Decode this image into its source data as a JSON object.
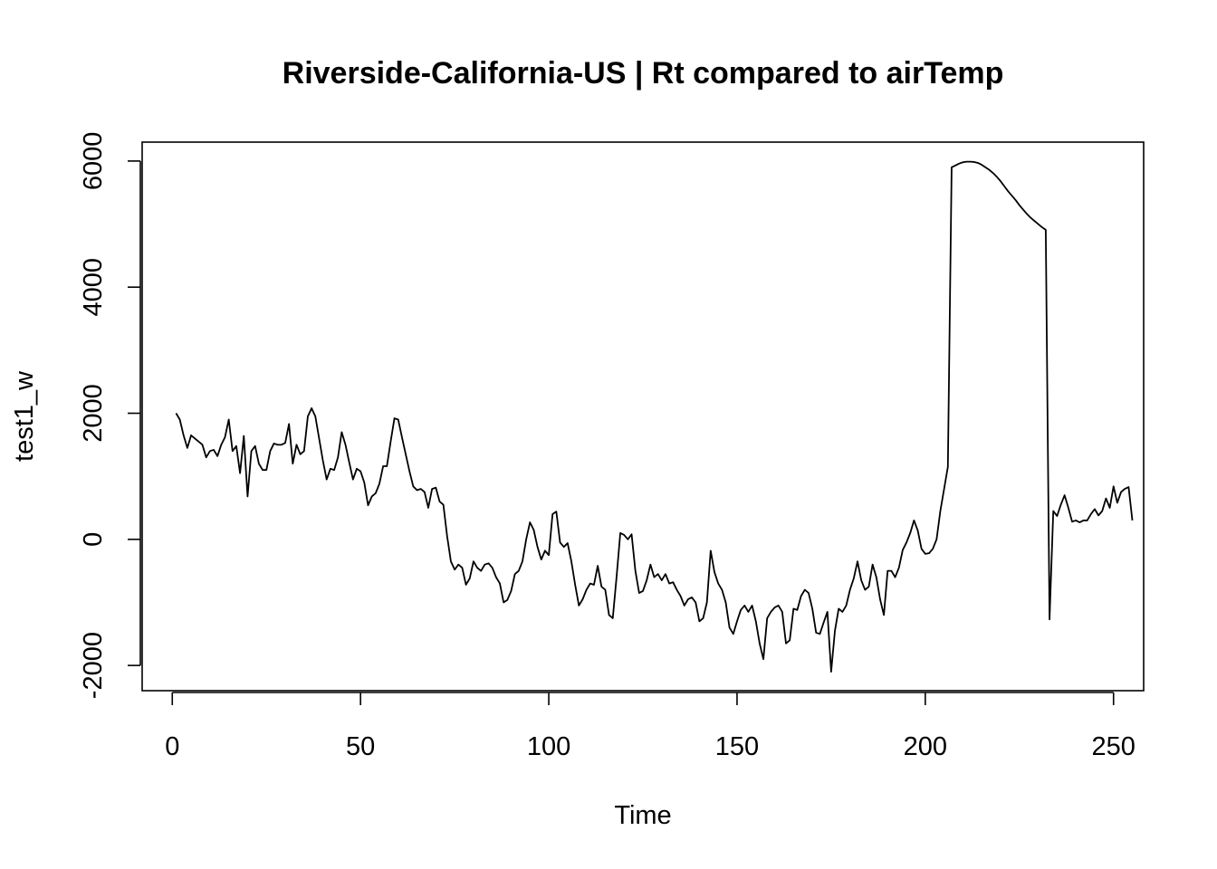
{
  "chart_data": {
    "type": "line",
    "title": "Riverside-California-US | Rt compared to airTemp",
    "xlabel": "Time",
    "ylabel": "test1_w",
    "xlim": [
      -8,
      258
    ],
    "ylim": [
      -2400,
      6300
    ],
    "x_ticks": [
      0,
      50,
      100,
      150,
      200,
      250
    ],
    "y_ticks": [
      -2000,
      0,
      2000,
      4000,
      6000
    ],
    "grid": false,
    "legend": "none",
    "color": "#000000",
    "series": [
      {
        "x_start": 1,
        "x_step": 1,
        "values": [
          2000,
          1900,
          1650,
          1450,
          1650,
          1600,
          1550,
          1500,
          1300,
          1400,
          1420,
          1320,
          1500,
          1620,
          1900,
          1400,
          1480,
          1050,
          1640,
          680,
          1400,
          1480,
          1200,
          1100,
          1100,
          1400,
          1520,
          1500,
          1500,
          1530,
          1830,
          1200,
          1500,
          1350,
          1400,
          1950,
          2080,
          1950,
          1600,
          1250,
          950,
          1120,
          1100,
          1300,
          1700,
          1500,
          1220,
          950,
          1120,
          1080,
          900,
          540,
          680,
          730,
          880,
          1160,
          1160,
          1550,
          1920,
          1900,
          1620,
          1350,
          1080,
          840,
          780,
          800,
          750,
          500,
          800,
          820,
          600,
          550,
          50,
          -350,
          -480,
          -400,
          -450,
          -720,
          -620,
          -350,
          -450,
          -500,
          -400,
          -380,
          -450,
          -600,
          -700,
          -1000,
          -960,
          -820,
          -550,
          -500,
          -350,
          0,
          270,
          150,
          -120,
          -320,
          -180,
          -250,
          400,
          440,
          -50,
          -120,
          -60,
          -350,
          -720,
          -1050,
          -950,
          -800,
          -700,
          -720,
          -420,
          -750,
          -800,
          -1200,
          -1250,
          -600,
          100,
          70,
          0,
          80,
          -500,
          -850,
          -820,
          -650,
          -400,
          -600,
          -550,
          -650,
          -550,
          -700,
          -680,
          -800,
          -900,
          -1050,
          -950,
          -920,
          -1000,
          -1300,
          -1250,
          -1000,
          -180,
          -520,
          -700,
          -800,
          -1000,
          -1400,
          -1500,
          -1300,
          -1120,
          -1050,
          -1150,
          -1050,
          -1300,
          -1650,
          -1900,
          -1250,
          -1150,
          -1080,
          -1050,
          -1150,
          -1650,
          -1600,
          -1100,
          -1120,
          -900,
          -800,
          -850,
          -1100,
          -1480,
          -1500,
          -1320,
          -1150,
          -2100,
          -1450,
          -1100,
          -1150,
          -1050,
          -800,
          -620,
          -350,
          -650,
          -800,
          -750,
          -400,
          -600,
          -950,
          -1200,
          -500,
          -500,
          -600,
          -450,
          -170,
          -50,
          100,
          300,
          140,
          -150,
          -230,
          -220,
          -150,
          0,
          450,
          800,
          1150,
          5900,
          5930,
          5960,
          5980,
          5990,
          5990,
          5985,
          5970,
          5940,
          5900,
          5860,
          5810,
          5750,
          5680,
          5600,
          5520,
          5450,
          5380,
          5300,
          5230,
          5160,
          5100,
          5050,
          5000,
          4950,
          4910,
          -1270,
          450,
          370,
          550,
          700,
          500,
          280,
          300,
          270,
          300,
          300,
          400,
          480,
          380,
          450,
          650,
          500,
          840,
          580,
          750,
          800,
          830,
          300
        ]
      }
    ]
  }
}
